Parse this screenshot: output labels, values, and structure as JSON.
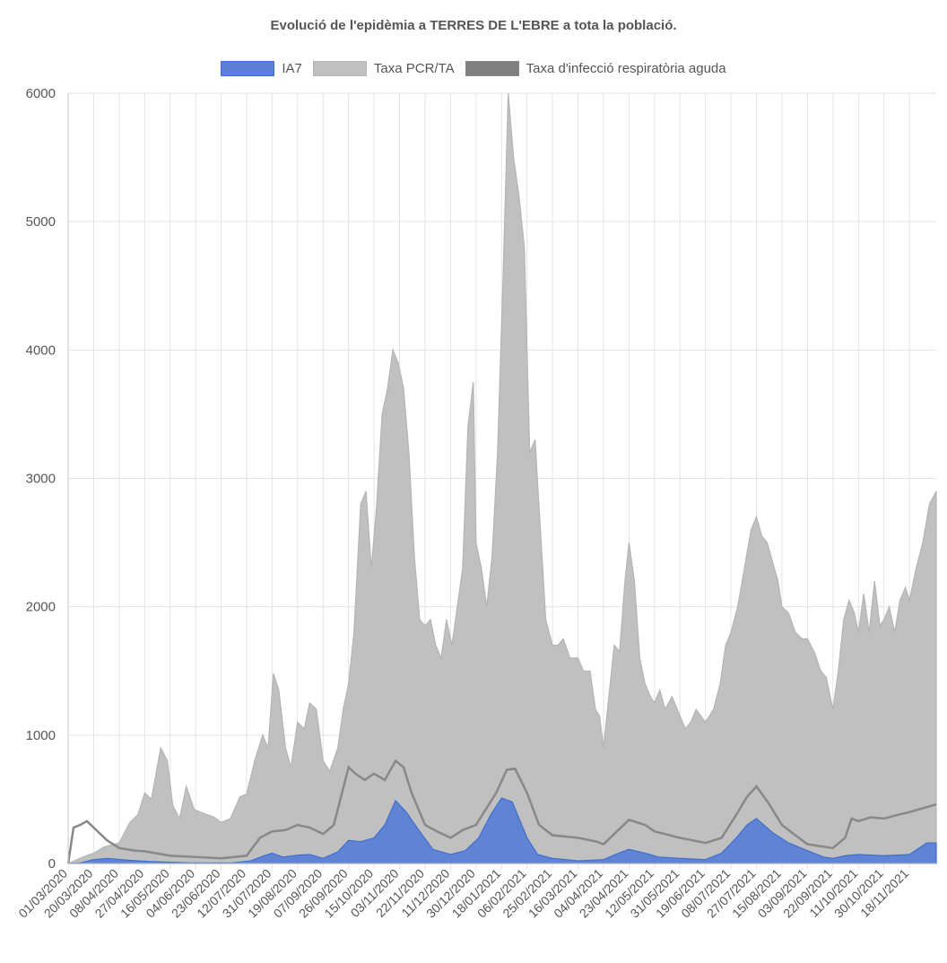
{
  "chart_data": {
    "type": "area",
    "title": "Evolució de l'epidèmia a TERRES DE L'EBRE a tota la població.",
    "legend_position": "top",
    "grid": true,
    "ylim": [
      0,
      6000
    ],
    "yticks": [
      0,
      1000,
      2000,
      3000,
      4000,
      5000,
      6000
    ],
    "xlim": [
      "01/03/2020",
      "08/12/2021"
    ],
    "xtick_labels": [
      "01/03/2020",
      "20/03/2020",
      "08/04/2020",
      "27/04/2020",
      "16/05/2020",
      "04/06/2020",
      "23/06/2020",
      "12/07/2020",
      "31/07/2020",
      "19/08/2020",
      "07/09/2020",
      "26/09/2020",
      "15/10/2020",
      "03/11/2020",
      "22/11/2020",
      "11/12/2020",
      "30/12/2020",
      "18/01/2021",
      "06/02/2021",
      "25/02/2021",
      "16/03/2021",
      "04/04/2021",
      "23/04/2021",
      "12/05/2021",
      "31/05/2021",
      "19/06/2021",
      "08/07/2021",
      "27/07/2021",
      "15/08/2021",
      "03/09/2021",
      "22/09/2021",
      "11/10/2021",
      "30/10/2021",
      "18/11/2021"
    ],
    "series": [
      {
        "name": "IA7",
        "color": "#3f6fce",
        "fill": "#5b80d4",
        "points": [
          [
            "01/03/2020",
            0
          ],
          [
            "10/03/2020",
            5
          ],
          [
            "20/03/2020",
            30
          ],
          [
            "30/03/2020",
            40
          ],
          [
            "15/04/2020",
            25
          ],
          [
            "01/05/2020",
            15
          ],
          [
            "01/06/2020",
            5
          ],
          [
            "01/07/2020",
            5
          ],
          [
            "15/07/2020",
            20
          ],
          [
            "25/07/2020",
            60
          ],
          [
            "31/07/2020",
            80
          ],
          [
            "08/08/2020",
            50
          ],
          [
            "19/08/2020",
            65
          ],
          [
            "28/08/2020",
            70
          ],
          [
            "07/09/2020",
            40
          ],
          [
            "18/09/2020",
            90
          ],
          [
            "26/09/2020",
            180
          ],
          [
            "05/10/2020",
            170
          ],
          [
            "15/10/2020",
            200
          ],
          [
            "23/10/2020",
            300
          ],
          [
            "31/10/2020",
            490
          ],
          [
            "08/11/2020",
            400
          ],
          [
            "18/11/2020",
            250
          ],
          [
            "28/11/2020",
            110
          ],
          [
            "11/12/2020",
            70
          ],
          [
            "22/12/2020",
            100
          ],
          [
            "01/01/2021",
            200
          ],
          [
            "10/01/2021",
            380
          ],
          [
            "18/01/2021",
            510
          ],
          [
            "26/01/2021",
            480
          ],
          [
            "06/02/2021",
            200
          ],
          [
            "14/02/2021",
            70
          ],
          [
            "25/02/2021",
            40
          ],
          [
            "16/03/2021",
            20
          ],
          [
            "04/04/2021",
            30
          ],
          [
            "15/04/2021",
            80
          ],
          [
            "23/04/2021",
            110
          ],
          [
            "05/05/2021",
            80
          ],
          [
            "15/05/2021",
            50
          ],
          [
            "31/05/2021",
            40
          ],
          [
            "19/06/2021",
            30
          ],
          [
            "01/07/2021",
            80
          ],
          [
            "12/07/2021",
            200
          ],
          [
            "20/07/2021",
            300
          ],
          [
            "27/07/2021",
            350
          ],
          [
            "08/08/2021",
            240
          ],
          [
            "20/08/2021",
            160
          ],
          [
            "03/09/2021",
            100
          ],
          [
            "15/09/2021",
            50
          ],
          [
            "22/09/2021",
            40
          ],
          [
            "01/10/2021",
            60
          ],
          [
            "11/10/2021",
            70
          ],
          [
            "30/10/2021",
            60
          ],
          [
            "18/11/2021",
            70
          ],
          [
            "01/12/2021",
            160
          ],
          [
            "08/12/2021",
            160
          ]
        ]
      },
      {
        "name": "Taxa PCR/TA",
        "color": "#b4b4b4",
        "fill": "#c0c0c0",
        "points": [
          [
            "01/03/2020",
            0
          ],
          [
            "12/03/2020",
            50
          ],
          [
            "20/03/2020",
            80
          ],
          [
            "28/03/2020",
            130
          ],
          [
            "08/04/2020",
            160
          ],
          [
            "16/04/2020",
            320
          ],
          [
            "22/04/2020",
            380
          ],
          [
            "27/04/2020",
            550
          ],
          [
            "02/05/2020",
            500
          ],
          [
            "09/05/2020",
            900
          ],
          [
            "14/05/2020",
            800
          ],
          [
            "18/05/2020",
            450
          ],
          [
            "23/05/2020",
            350
          ],
          [
            "28/05/2020",
            600
          ],
          [
            "03/06/2020",
            420
          ],
          [
            "10/06/2020",
            390
          ],
          [
            "18/06/2020",
            360
          ],
          [
            "23/06/2020",
            320
          ],
          [
            "30/06/2020",
            350
          ],
          [
            "07/07/2020",
            520
          ],
          [
            "12/07/2020",
            540
          ],
          [
            "18/07/2020",
            800
          ],
          [
            "24/07/2020",
            1000
          ],
          [
            "28/07/2020",
            900
          ],
          [
            "01/08/2020",
            1480
          ],
          [
            "05/08/2020",
            1350
          ],
          [
            "10/08/2020",
            900
          ],
          [
            "14/08/2020",
            750
          ],
          [
            "19/08/2020",
            1100
          ],
          [
            "24/08/2020",
            1050
          ],
          [
            "28/08/2020",
            1250
          ],
          [
            "02/09/2020",
            1200
          ],
          [
            "07/09/2020",
            800
          ],
          [
            "12/09/2020",
            720
          ],
          [
            "18/09/2020",
            900
          ],
          [
            "22/09/2020",
            1200
          ],
          [
            "26/09/2020",
            1400
          ],
          [
            "30/09/2020",
            1800
          ],
          [
            "05/10/2020",
            2800
          ],
          [
            "09/10/2020",
            2900
          ],
          [
            "13/10/2020",
            2300
          ],
          [
            "17/10/2020",
            2800
          ],
          [
            "21/10/2020",
            3500
          ],
          [
            "25/10/2020",
            3700
          ],
          [
            "29/10/2020",
            4000
          ],
          [
            "02/11/2020",
            3900
          ],
          [
            "06/11/2020",
            3700
          ],
          [
            "10/11/2020",
            3200
          ],
          [
            "14/11/2020",
            2400
          ],
          [
            "18/11/2020",
            1900
          ],
          [
            "22/11/2020",
            1850
          ],
          [
            "26/11/2020",
            1900
          ],
          [
            "30/11/2020",
            1700
          ],
          [
            "04/12/2020",
            1600
          ],
          [
            "08/12/2020",
            1900
          ],
          [
            "12/12/2020",
            1700
          ],
          [
            "16/12/2020",
            2000
          ],
          [
            "20/12/2020",
            2300
          ],
          [
            "24/12/2020",
            3400
          ],
          [
            "28/12/2020",
            3750
          ],
          [
            "30/12/2020",
            2500
          ],
          [
            "03/01/2021",
            2300
          ],
          [
            "07/01/2021",
            2000
          ],
          [
            "11/01/2021",
            2400
          ],
          [
            "15/01/2021",
            3200
          ],
          [
            "19/01/2021",
            4500
          ],
          [
            "23/01/2021",
            6000
          ],
          [
            "27/01/2021",
            5500
          ],
          [
            "31/01/2021",
            5200
          ],
          [
            "04/02/2021",
            4800
          ],
          [
            "08/02/2021",
            3200
          ],
          [
            "12/02/2021",
            3300
          ],
          [
            "16/02/2021",
            2600
          ],
          [
            "20/02/2021",
            1900
          ],
          [
            "25/02/2021",
            1700
          ],
          [
            "01/03/2021",
            1700
          ],
          [
            "05/03/2021",
            1750
          ],
          [
            "10/03/2021",
            1600
          ],
          [
            "16/03/2021",
            1600
          ],
          [
            "20/03/2021",
            1500
          ],
          [
            "25/03/2021",
            1500
          ],
          [
            "29/03/2021",
            1200
          ],
          [
            "01/04/2021",
            1150
          ],
          [
            "04/04/2021",
            900
          ],
          [
            "08/04/2021",
            1300
          ],
          [
            "12/04/2021",
            1700
          ],
          [
            "16/04/2021",
            1650
          ],
          [
            "20/04/2021",
            2200
          ],
          [
            "23/04/2021",
            2500
          ],
          [
            "27/04/2021",
            2200
          ],
          [
            "01/05/2021",
            1600
          ],
          [
            "05/05/2021",
            1400
          ],
          [
            "09/05/2021",
            1300
          ],
          [
            "12/05/2021",
            1250
          ],
          [
            "16/05/2021",
            1350
          ],
          [
            "20/05/2021",
            1200
          ],
          [
            "25/05/2021",
            1300
          ],
          [
            "31/05/2021",
            1150
          ],
          [
            "04/06/2021",
            1050
          ],
          [
            "08/06/2021",
            1100
          ],
          [
            "12/06/2021",
            1200
          ],
          [
            "19/06/2021",
            1100
          ],
          [
            "25/06/2021",
            1200
          ],
          [
            "30/06/2021",
            1400
          ],
          [
            "04/07/2021",
            1700
          ],
          [
            "08/07/2021",
            1800
          ],
          [
            "13/07/2021",
            2000
          ],
          [
            "18/07/2021",
            2300
          ],
          [
            "23/07/2021",
            2600
          ],
          [
            "27/07/2021",
            2700
          ],
          [
            "31/07/2021",
            2550
          ],
          [
            "04/08/2021",
            2500
          ],
          [
            "08/08/2021",
            2350
          ],
          [
            "12/08/2021",
            2200
          ],
          [
            "15/08/2021",
            2000
          ],
          [
            "20/08/2021",
            1950
          ],
          [
            "25/08/2021",
            1800
          ],
          [
            "30/08/2021",
            1750
          ],
          [
            "03/09/2021",
            1750
          ],
          [
            "08/09/2021",
            1650
          ],
          [
            "13/09/2021",
            1500
          ],
          [
            "17/09/2021",
            1450
          ],
          [
            "22/09/2021",
            1200
          ],
          [
            "26/09/2021",
            1500
          ],
          [
            "30/09/2021",
            1900
          ],
          [
            "04/10/2021",
            2050
          ],
          [
            "08/10/2021",
            1950
          ],
          [
            "11/10/2021",
            1800
          ],
          [
            "15/10/2021",
            2100
          ],
          [
            "19/10/2021",
            1800
          ],
          [
            "23/10/2021",
            2200
          ],
          [
            "27/10/2021",
            1850
          ],
          [
            "30/10/2021",
            1900
          ],
          [
            "03/11/2021",
            2000
          ],
          [
            "07/11/2021",
            1800
          ],
          [
            "11/11/2021",
            2050
          ],
          [
            "15/11/2021",
            2150
          ],
          [
            "18/11/2021",
            2050
          ],
          [
            "23/11/2021",
            2300
          ],
          [
            "28/11/2021",
            2500
          ],
          [
            "03/12/2021",
            2800
          ],
          [
            "08/12/2021",
            2900
          ]
        ]
      },
      {
        "name": "Taxa d'infecció respiratòria aguda",
        "color": "#888888",
        "fill": "#808080",
        "line_only": true,
        "points": [
          [
            "01/03/2020",
            0
          ],
          [
            "05/03/2020",
            280
          ],
          [
            "10/03/2020",
            300
          ],
          [
            "15/03/2020",
            330
          ],
          [
            "20/03/2020",
            280
          ],
          [
            "30/03/2020",
            180
          ],
          [
            "08/04/2020",
            120
          ],
          [
            "20/04/2020",
            100
          ],
          [
            "27/04/2020",
            95
          ],
          [
            "16/05/2020",
            60
          ],
          [
            "04/06/2020",
            50
          ],
          [
            "23/06/2020",
            40
          ],
          [
            "12/07/2020",
            60
          ],
          [
            "22/07/2020",
            200
          ],
          [
            "31/07/2020",
            250
          ],
          [
            "10/08/2020",
            260
          ],
          [
            "19/08/2020",
            300
          ],
          [
            "28/08/2020",
            280
          ],
          [
            "07/09/2020",
            230
          ],
          [
            "15/09/2020",
            300
          ],
          [
            "26/09/2020",
            750
          ],
          [
            "01/10/2020",
            700
          ],
          [
            "08/10/2020",
            650
          ],
          [
            "15/10/2020",
            700
          ],
          [
            "23/10/2020",
            650
          ],
          [
            "31/10/2020",
            800
          ],
          [
            "06/11/2020",
            750
          ],
          [
            "12/11/2020",
            550
          ],
          [
            "22/11/2020",
            300
          ],
          [
            "01/12/2020",
            250
          ],
          [
            "11/12/2020",
            200
          ],
          [
            "20/12/2020",
            260
          ],
          [
            "30/12/2020",
            300
          ],
          [
            "08/01/2021",
            450
          ],
          [
            "14/01/2021",
            550
          ],
          [
            "22/01/2021",
            730
          ],
          [
            "28/01/2021",
            740
          ],
          [
            "06/02/2021",
            550
          ],
          [
            "15/02/2021",
            300
          ],
          [
            "25/02/2021",
            220
          ],
          [
            "16/03/2021",
            200
          ],
          [
            "30/03/2021",
            170
          ],
          [
            "04/04/2021",
            150
          ],
          [
            "15/04/2021",
            260
          ],
          [
            "23/04/2021",
            340
          ],
          [
            "05/05/2021",
            300
          ],
          [
            "12/05/2021",
            250
          ],
          [
            "31/05/2021",
            200
          ],
          [
            "19/06/2021",
            160
          ],
          [
            "01/07/2021",
            200
          ],
          [
            "12/07/2021",
            380
          ],
          [
            "20/07/2021",
            520
          ],
          [
            "27/07/2021",
            600
          ],
          [
            "05/08/2021",
            470
          ],
          [
            "15/08/2021",
            300
          ],
          [
            "25/08/2021",
            220
          ],
          [
            "03/09/2021",
            150
          ],
          [
            "22/09/2021",
            120
          ],
          [
            "01/10/2021",
            200
          ],
          [
            "06/10/2021",
            350
          ],
          [
            "11/10/2021",
            330
          ],
          [
            "20/10/2021",
            360
          ],
          [
            "30/10/2021",
            350
          ],
          [
            "10/11/2021",
            380
          ],
          [
            "18/11/2021",
            400
          ],
          [
            "28/11/2021",
            430
          ],
          [
            "08/12/2021",
            460
          ]
        ]
      }
    ]
  }
}
